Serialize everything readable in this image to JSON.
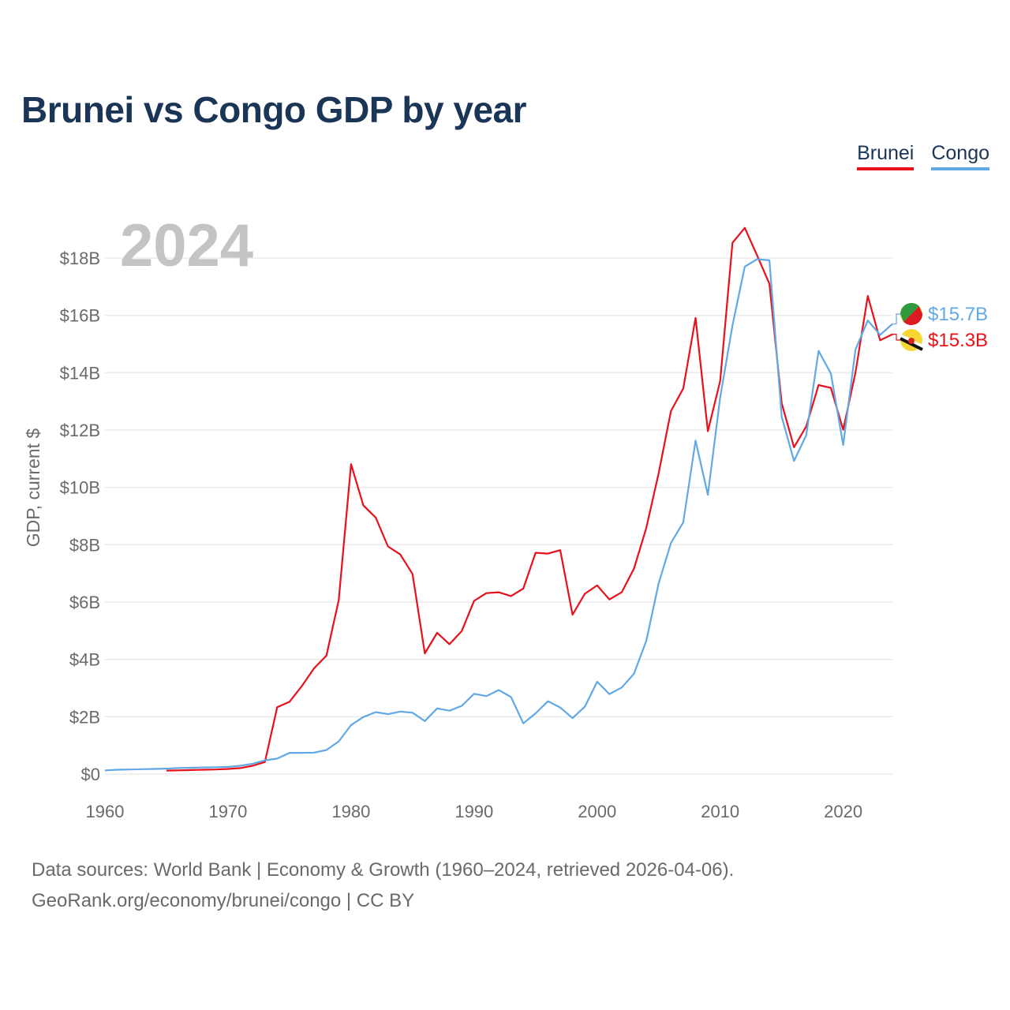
{
  "chart_data": {
    "type": "line",
    "title": "Brunei vs Congo GDP by year",
    "year_label": "2024",
    "xlabel": "",
    "ylabel": "GDP, current $",
    "xlim": [
      1960,
      2024
    ],
    "ylim": [
      0,
      19000000000
    ],
    "x_ticks": [
      1960,
      1970,
      1980,
      1990,
      2000,
      2010,
      2020
    ],
    "x_tick_labels": [
      "1960",
      "1970",
      "1980",
      "1990",
      "2000",
      "2010",
      "2020"
    ],
    "y_ticks": [
      0,
      2000000000,
      4000000000,
      6000000000,
      8000000000,
      10000000000,
      12000000000,
      14000000000,
      16000000000,
      18000000000
    ],
    "y_tick_labels": [
      "$0",
      "$2B",
      "$4B",
      "$6B",
      "$8B",
      "$10B",
      "$12B",
      "$14B",
      "$16B",
      "$18B"
    ],
    "grid": true,
    "legend_position": "top-right",
    "series": [
      {
        "name": "Brunei",
        "color": "#e8101a",
        "end_label": "$15.3B",
        "start_year": 1965,
        "values": [
          0.12,
          0.13,
          0.14,
          0.15,
          0.16,
          0.18,
          0.21,
          0.29,
          0.42,
          2.33,
          2.52,
          3.07,
          3.69,
          4.13,
          6.07,
          10.81,
          9.37,
          8.95,
          7.94,
          7.66,
          6.98,
          4.21,
          4.93,
          4.53,
          4.99,
          6.04,
          6.31,
          6.34,
          6.21,
          6.47,
          7.72,
          7.69,
          7.81,
          5.56,
          6.29,
          6.58,
          6.09,
          6.34,
          7.17,
          8.59,
          10.49,
          12.66,
          13.45,
          15.91,
          11.96,
          13.71,
          18.53,
          19.05,
          18.09,
          17.1,
          12.93,
          11.4,
          12.13,
          13.57,
          13.47,
          12.01,
          14.01,
          16.68,
          15.13,
          15.34
        ]
      },
      {
        "name": "Congo",
        "color": "#62a8e5",
        "end_label": "$15.7B",
        "start_year": 1960,
        "values": [
          0.13,
          0.15,
          0.16,
          0.17,
          0.18,
          0.19,
          0.21,
          0.22,
          0.23,
          0.24,
          0.25,
          0.29,
          0.36,
          0.48,
          0.54,
          0.74,
          0.74,
          0.75,
          0.84,
          1.14,
          1.71,
          1.99,
          2.16,
          2.09,
          2.18,
          2.14,
          1.85,
          2.29,
          2.21,
          2.38,
          2.8,
          2.72,
          2.93,
          2.69,
          1.77,
          2.12,
          2.54,
          2.32,
          1.95,
          2.35,
          3.22,
          2.79,
          3.02,
          3.5,
          4.65,
          6.65,
          8.06,
          8.78,
          11.63,
          9.74,
          13.14,
          15.65,
          17.7,
          17.96,
          17.92,
          12.46,
          10.92,
          11.82,
          14.76,
          13.97,
          11.48,
          14.81,
          15.82,
          15.32,
          15.7
        ]
      }
    ]
  },
  "footer": {
    "line1": "Data sources: World Bank | Economy & Growth (1960–2024, retrieved 2026-04-06).",
    "line2": "GeoRank.org/economy/brunei/congo | CC BY"
  }
}
